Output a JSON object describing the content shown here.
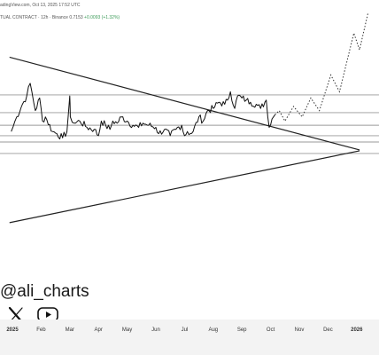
{
  "header": {
    "line1": "adingView.com, Oct 13, 2025 17:52 UTC",
    "line2_prefix": "TUAL CONTRACT · 12h · Binance  0.7153  ",
    "line2_change": "+0.0093 (+1.32%)"
  },
  "watermark": {
    "handle": "@ali_charts"
  },
  "icons": {
    "x": "x-logo-icon",
    "youtube": "youtube-play-icon"
  },
  "colors": {
    "background": "#ffffff",
    "price_line": "#111111",
    "trendline": "#222222",
    "level_line": "#9a9a9a",
    "projection": "#333333",
    "axis_bar": "#f3f3f3",
    "change_positive": "#3a9a57"
  },
  "chart_data": {
    "type": "line",
    "title": "",
    "xlabel": "",
    "ylabel": "",
    "x_ticks": [
      "2025",
      "Feb",
      "Mar",
      "Apr",
      "May",
      "Jun",
      "Jul",
      "Aug",
      "Sep",
      "Oct",
      "Nov",
      "Dec",
      "2026"
    ],
    "price_axis": "hidden",
    "grid": false,
    "series": [
      {
        "values": [
          [
            -0.04,
            0.55
          ],
          [
            0.15,
            0.62
          ],
          [
            0.35,
            0.68
          ],
          [
            0.5,
            0.72
          ],
          [
            0.62,
            0.78
          ],
          [
            0.8,
            0.65
          ],
          [
            0.95,
            0.71
          ],
          [
            1.05,
            0.6
          ],
          [
            1.15,
            0.62
          ],
          [
            1.4,
            0.55
          ],
          [
            1.55,
            0.54
          ],
          [
            1.75,
            0.52
          ],
          [
            1.9,
            0.55
          ],
          [
            2.0,
            0.72
          ],
          [
            2.02,
            0.62
          ],
          [
            2.15,
            0.59
          ],
          [
            2.35,
            0.6
          ],
          [
            2.6,
            0.57
          ],
          [
            2.85,
            0.56
          ],
          [
            3.0,
            0.53
          ],
          [
            3.1,
            0.6
          ],
          [
            3.25,
            0.58
          ],
          [
            3.4,
            0.56
          ],
          [
            3.5,
            0.6
          ],
          [
            3.65,
            0.59
          ],
          [
            3.8,
            0.62
          ],
          [
            4.0,
            0.6
          ],
          [
            4.2,
            0.58
          ],
          [
            4.4,
            0.57
          ],
          [
            4.55,
            0.59
          ],
          [
            4.75,
            0.58
          ],
          [
            5.0,
            0.57
          ],
          [
            5.1,
            0.54
          ],
          [
            5.3,
            0.56
          ],
          [
            5.5,
            0.53
          ],
          [
            5.7,
            0.56
          ],
          [
            5.9,
            0.58
          ],
          [
            6.0,
            0.53
          ],
          [
            6.1,
            0.55
          ],
          [
            6.2,
            0.54
          ],
          [
            6.3,
            0.55
          ],
          [
            6.5,
            0.62
          ],
          [
            6.65,
            0.6
          ],
          [
            6.8,
            0.65
          ],
          [
            7.0,
            0.66
          ],
          [
            7.2,
            0.69
          ],
          [
            7.4,
            0.68
          ],
          [
            7.5,
            0.7
          ],
          [
            7.6,
            0.74
          ],
          [
            7.75,
            0.66
          ],
          [
            7.85,
            0.72
          ],
          [
            8.0,
            0.71
          ],
          [
            8.15,
            0.7
          ],
          [
            8.3,
            0.69
          ],
          [
            8.5,
            0.68
          ],
          [
            8.65,
            0.66
          ],
          [
            8.85,
            0.7
          ],
          [
            8.95,
            0.57
          ],
          [
            9.05,
            0.61
          ],
          [
            9.15,
            0.63
          ]
        ]
      }
    ],
    "trendlines": [
      {
        "name": "upper",
        "from": [
          -0.1,
          0.905
        ],
        "to": [
          12.1,
          0.462
        ]
      },
      {
        "name": "lower",
        "from": [
          -0.1,
          0.115
        ],
        "to": [
          12.1,
          0.458
        ]
      }
    ],
    "horizontal_levels": [
      0.725,
      0.64,
      0.58,
      0.53,
      0.5,
      0.445
    ],
    "projection": [
      [
        9.3,
        0.65
      ],
      [
        9.5,
        0.6
      ],
      [
        9.8,
        0.67
      ],
      [
        10.1,
        0.62
      ],
      [
        10.4,
        0.71
      ],
      [
        10.7,
        0.65
      ],
      [
        11.1,
        0.82
      ],
      [
        11.4,
        0.74
      ],
      [
        11.9,
        1.02
      ],
      [
        12.1,
        0.94
      ],
      [
        12.4,
        1.12
      ]
    ]
  }
}
